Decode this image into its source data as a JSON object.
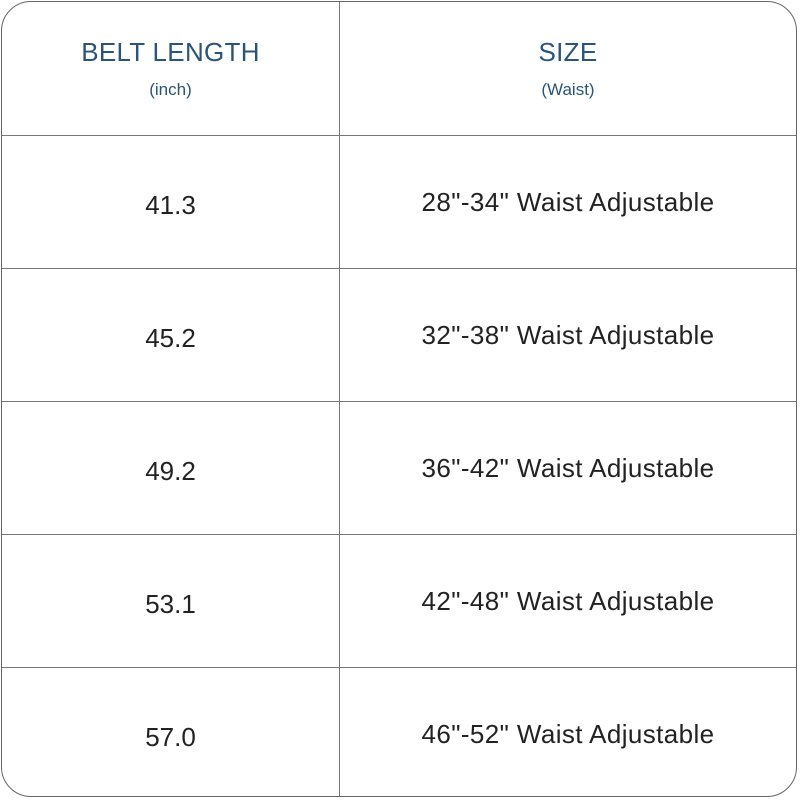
{
  "header": {
    "col1_title": "BELT LENGTH",
    "col1_unit": "(inch)",
    "col2_title": "SIZE",
    "col2_unit": "(Waist)"
  },
  "rows": [
    {
      "length": "41.3",
      "size": "28\"-34\" Waist Adjustable"
    },
    {
      "length": "45.2",
      "size": "32\"-38\" Waist Adjustable"
    },
    {
      "length": "49.2",
      "size": "36\"-42\" Waist Adjustable"
    },
    {
      "length": "53.1",
      "size": "42\"-48\" Waist Adjustable"
    },
    {
      "length": "57.0",
      "size": "46\"-52\" Waist Adjustable"
    }
  ],
  "colors": {
    "header_text": "#2a5479",
    "body_text": "#222222",
    "border": "#666666"
  }
}
